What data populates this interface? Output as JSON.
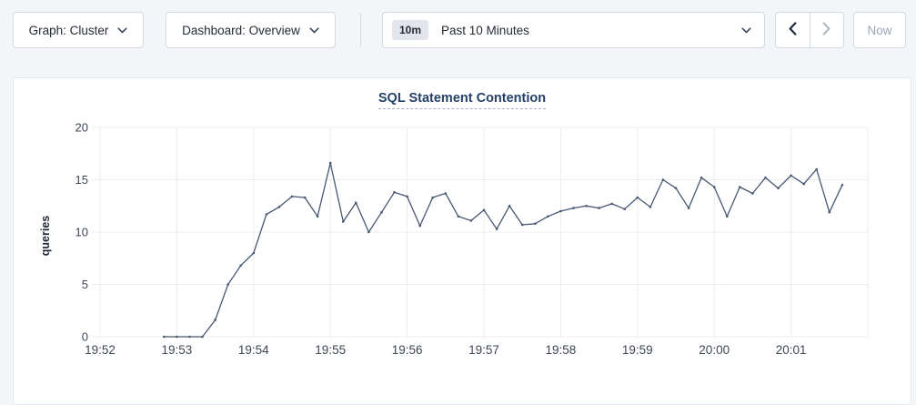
{
  "topbar": {
    "graph_dropdown": {
      "label": "Graph: Cluster"
    },
    "dashboard_dropdown": {
      "label": "Dashboard: Overview"
    },
    "time_picker": {
      "badge": "10m",
      "label": "Past 10 Minutes"
    },
    "nav": {
      "prev_enabled": true,
      "next_enabled": false
    },
    "now_button": {
      "label": "Now"
    }
  },
  "theme": {
    "line_color": "#475872",
    "grid_color": "#ececef",
    "tick_color": "#3e4653",
    "title_color": "#254067",
    "accent_dark": "#242a35"
  },
  "chart_data": {
    "type": "line",
    "title": "SQL Statement Contention",
    "xlabel": "",
    "ylabel": "queries",
    "ylim": [
      0,
      20
    ],
    "y_ticks": [
      0,
      5,
      10,
      15,
      20
    ],
    "x_tick_labels": [
      "19:52",
      "19:53",
      "19:54",
      "19:55",
      "19:56",
      "19:57",
      "19:58",
      "19:59",
      "20:00",
      "20:01"
    ],
    "x_start": "19:52:00",
    "x_total_minutes": 10,
    "sample_interval_seconds": 10,
    "grid": true,
    "legend": false,
    "series": [
      {
        "name": "queries",
        "first_point_offset_seconds": 50,
        "values": [
          0,
          0,
          0,
          0,
          1.6,
          5,
          6.8,
          8,
          11.7,
          12.4,
          13.4,
          13.3,
          11.5,
          16.6,
          11,
          12.8,
          10,
          11.9,
          13.8,
          13.4,
          10.6,
          13.3,
          13.7,
          11.5,
          11.1,
          12.1,
          10.3,
          12.5,
          10.7,
          10.8,
          11.5,
          12,
          12.3,
          12.5,
          12.3,
          12.7,
          12.2,
          13.3,
          12.4,
          15,
          14.2,
          12.3,
          15.2,
          14.3,
          11.5,
          14.3,
          13.7,
          15.2,
          14.2,
          15.4,
          14.6,
          16,
          11.9,
          14.5
        ]
      }
    ]
  }
}
